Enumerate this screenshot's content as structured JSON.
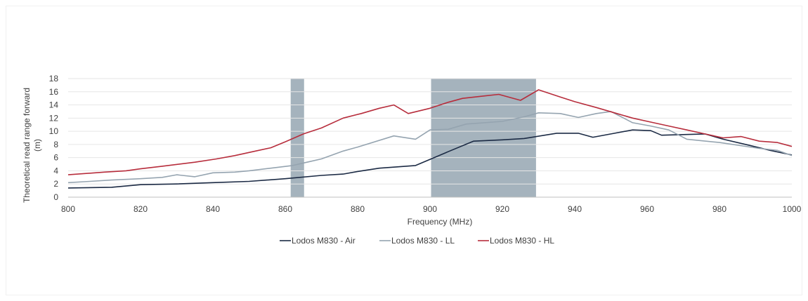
{
  "chart_data": {
    "type": "line",
    "title": "",
    "xlabel": "Frequency (MHz)",
    "ylabel_lines": [
      "Theoretical read range forward",
      "(m)"
    ],
    "xlim": [
      800,
      1000
    ],
    "ylim": [
      0,
      18
    ],
    "x_ticks": [
      800,
      820,
      840,
      860,
      880,
      900,
      920,
      940,
      960,
      980,
      1000
    ],
    "y_ticks": [
      0,
      2,
      4,
      6,
      8,
      10,
      12,
      14,
      16,
      18
    ],
    "grid": "horizontal",
    "legend_position": "bottom",
    "shaded_bands": [
      {
        "x_start": 861.5,
        "x_end": 865.2,
        "color": "#a5b3bd"
      },
      {
        "x_start": 900.3,
        "x_end": 929.3,
        "color": "#a5b3bd"
      }
    ],
    "series": [
      {
        "name": "Lodos M830 - Air",
        "color": "#1b2a44",
        "x": [
          800,
          812,
          820,
          830,
          840,
          850,
          860,
          870,
          876,
          880,
          886,
          896,
          905,
          912,
          920,
          926,
          935,
          941,
          945,
          950,
          956,
          961,
          964,
          970,
          976,
          981,
          988,
          994,
          1000
        ],
        "y": [
          1.4,
          1.5,
          1.9,
          2.0,
          2.2,
          2.4,
          2.8,
          3.3,
          3.5,
          3.9,
          4.4,
          4.8,
          6.9,
          8.5,
          8.7,
          8.9,
          9.7,
          9.7,
          9.1,
          9.6,
          10.2,
          10.1,
          9.4,
          9.5,
          9.6,
          8.8,
          7.9,
          7.1,
          6.4
        ]
      },
      {
        "name": "Lodos M830 - LL",
        "color": "#95a4b0",
        "x": [
          800,
          806,
          812,
          820,
          826,
          830,
          835,
          840,
          846,
          850,
          856,
          862,
          866,
          870,
          876,
          880,
          890,
          896,
          900,
          905,
          910,
          920,
          926,
          930,
          936,
          941,
          946,
          950,
          956,
          961,
          966,
          971,
          980,
          991,
          996,
          1000
        ],
        "y": [
          2.2,
          2.4,
          2.6,
          2.8,
          3.0,
          3.4,
          3.1,
          3.7,
          3.8,
          4.0,
          4.4,
          4.8,
          5.3,
          5.8,
          7.0,
          7.6,
          9.3,
          8.8,
          10.2,
          10.3,
          11.1,
          11.5,
          12.2,
          12.8,
          12.7,
          12.1,
          12.7,
          13.0,
          11.3,
          10.8,
          10.2,
          8.8,
          8.3,
          7.4,
          7.1,
          6.3
        ]
      },
      {
        "name": "Lodos M830 - HL",
        "color": "#b72d3c",
        "x": [
          800,
          810,
          816,
          820,
          826,
          835,
          841,
          846,
          851,
          856,
          860,
          865,
          870,
          876,
          881,
          886,
          890,
          894,
          900,
          905,
          909,
          914,
          919,
          925,
          930,
          936,
          940,
          946,
          951,
          956,
          961,
          966,
          971,
          976,
          981,
          986,
          991,
          996,
          1000
        ],
        "y": [
          3.4,
          3.8,
          4.0,
          4.3,
          4.7,
          5.3,
          5.8,
          6.3,
          6.9,
          7.5,
          8.4,
          9.6,
          10.5,
          12.0,
          12.7,
          13.5,
          14.0,
          12.7,
          13.5,
          14.4,
          15.0,
          15.3,
          15.6,
          14.7,
          16.3,
          15.2,
          14.5,
          13.6,
          12.8,
          12.0,
          11.4,
          10.8,
          10.2,
          9.6,
          9.0,
          9.2,
          8.5,
          8.3,
          7.7
        ]
      }
    ]
  }
}
